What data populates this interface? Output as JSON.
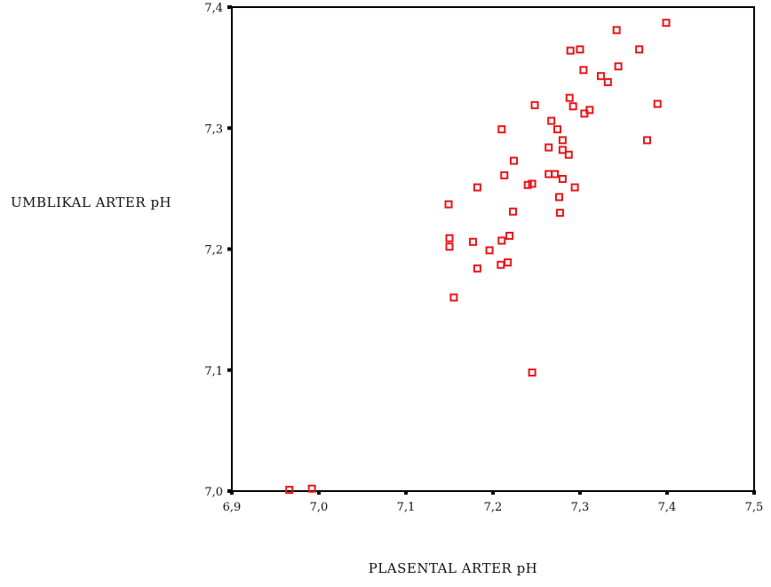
{
  "chart_data": {
    "type": "scatter",
    "xlabel": "PLASENTAL ARTER pH",
    "ylabel": "UMBLIKAL ARTER pH",
    "xlim": [
      6.9,
      7.5
    ],
    "ylim": [
      7.0,
      7.4
    ],
    "x_ticks": [
      "6,9",
      "7,0",
      "7,1",
      "7,2",
      "7,3",
      "7,4",
      "7,5"
    ],
    "y_ticks": [
      "7,0",
      "7,1",
      "7,2",
      "7,3",
      "7,4"
    ],
    "marker_color": "#e8141b",
    "marker": "hollow-square",
    "grid": false,
    "points": [
      {
        "x": 6.966,
        "y": 7.001
      },
      {
        "x": 6.992,
        "y": 7.002
      },
      {
        "x": 7.149,
        "y": 7.237
      },
      {
        "x": 7.15,
        "y": 7.209
      },
      {
        "x": 7.15,
        "y": 7.202
      },
      {
        "x": 7.155,
        "y": 7.16
      },
      {
        "x": 7.177,
        "y": 7.206
      },
      {
        "x": 7.182,
        "y": 7.184
      },
      {
        "x": 7.182,
        "y": 7.251
      },
      {
        "x": 7.196,
        "y": 7.199
      },
      {
        "x": 7.209,
        "y": 7.187
      },
      {
        "x": 7.21,
        "y": 7.207
      },
      {
        "x": 7.21,
        "y": 7.299
      },
      {
        "x": 7.213,
        "y": 7.261
      },
      {
        "x": 7.217,
        "y": 7.189
      },
      {
        "x": 7.219,
        "y": 7.211
      },
      {
        "x": 7.223,
        "y": 7.231
      },
      {
        "x": 7.224,
        "y": 7.273
      },
      {
        "x": 7.24,
        "y": 7.253
      },
      {
        "x": 7.245,
        "y": 7.254
      },
      {
        "x": 7.245,
        "y": 7.098
      },
      {
        "x": 7.248,
        "y": 7.319
      },
      {
        "x": 7.264,
        "y": 7.262
      },
      {
        "x": 7.264,
        "y": 7.284
      },
      {
        "x": 7.267,
        "y": 7.306
      },
      {
        "x": 7.271,
        "y": 7.262
      },
      {
        "x": 7.274,
        "y": 7.299
      },
      {
        "x": 7.276,
        "y": 7.243
      },
      {
        "x": 7.277,
        "y": 7.23
      },
      {
        "x": 7.28,
        "y": 7.29
      },
      {
        "x": 7.28,
        "y": 7.282
      },
      {
        "x": 7.28,
        "y": 7.258
      },
      {
        "x": 7.287,
        "y": 7.278
      },
      {
        "x": 7.288,
        "y": 7.325
      },
      {
        "x": 7.289,
        "y": 7.364
      },
      {
        "x": 7.292,
        "y": 7.318
      },
      {
        "x": 7.294,
        "y": 7.251
      },
      {
        "x": 7.3,
        "y": 7.365
      },
      {
        "x": 7.304,
        "y": 7.348
      },
      {
        "x": 7.305,
        "y": 7.312
      },
      {
        "x": 7.311,
        "y": 7.315
      },
      {
        "x": 7.324,
        "y": 7.343
      },
      {
        "x": 7.332,
        "y": 7.338
      },
      {
        "x": 7.342,
        "y": 7.381
      },
      {
        "x": 7.344,
        "y": 7.351
      },
      {
        "x": 7.368,
        "y": 7.365
      },
      {
        "x": 7.377,
        "y": 7.29
      },
      {
        "x": 7.389,
        "y": 7.32
      },
      {
        "x": 7.399,
        "y": 7.387
      }
    ]
  }
}
